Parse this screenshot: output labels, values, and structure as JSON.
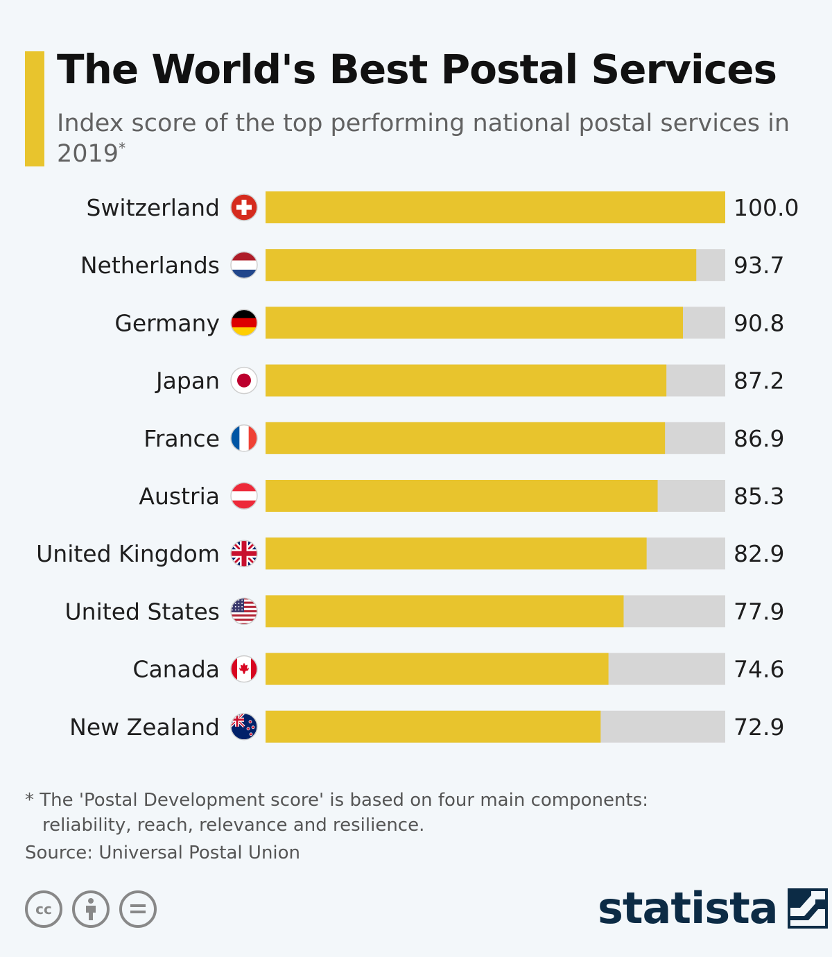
{
  "header": {
    "title": "The World's Best Postal Services",
    "subtitle": "Index score of the top performing national postal services in 2019",
    "subtitle_marker": "*",
    "accent_color": "#e8c42d"
  },
  "chart_data": {
    "type": "bar",
    "orientation": "horizontal",
    "categories": [
      "Switzerland",
      "Netherlands",
      "Germany",
      "Japan",
      "France",
      "Austria",
      "United Kingdom",
      "United States",
      "Canada",
      "New Zealand"
    ],
    "values": [
      100.0,
      93.7,
      90.8,
      87.2,
      86.9,
      85.3,
      82.9,
      77.9,
      74.6,
      72.9
    ],
    "value_labels": [
      "100.0",
      "93.7",
      "90.8",
      "87.2",
      "86.9",
      "85.3",
      "82.9",
      "77.9",
      "74.6",
      "72.9"
    ],
    "flag_icons": [
      "switzerland-flag-icon",
      "netherlands-flag-icon",
      "germany-flag-icon",
      "japan-flag-icon",
      "france-flag-icon",
      "austria-flag-icon",
      "united-kingdom-flag-icon",
      "united-states-flag-icon",
      "canada-flag-icon",
      "new-zealand-flag-icon"
    ],
    "xlim": [
      0,
      100
    ],
    "bar_color": "#e8c42d",
    "track_color": "#d6d6d6",
    "grid": false
  },
  "footer": {
    "footnote_line1": "* The 'Postal Development score' is based on four main components:",
    "footnote_line2": "reliability, reach, relevance and resilience.",
    "source": "Source: Universal Postal Union",
    "brand": "statista",
    "license_icons": [
      "cc-icon",
      "attribution-icon",
      "no-derivatives-icon"
    ]
  }
}
